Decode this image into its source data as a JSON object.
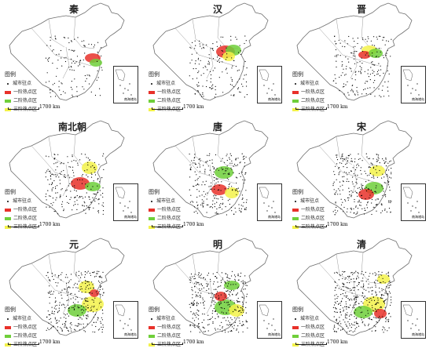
{
  "panels": [
    {
      "title": "秦",
      "legend": {
        "header": "图例",
        "city": "城市驻点",
        "t1": "一阶热点区",
        "t2": "二阶热点区",
        "t3": "三阶热点区"
      },
      "scale": "1700 km",
      "inset": "南海诸岛"
    },
    {
      "title": "汉",
      "legend": {
        "header": "图例",
        "city": "城市驻点",
        "t1": "一阶热点区",
        "t2": "二阶热点区",
        "t3": "三阶热点区"
      },
      "scale": "1700 km",
      "inset": "南海诸岛"
    },
    {
      "title": "晋",
      "legend": {
        "header": "图例",
        "city": "城市驻点",
        "t1": "一阶热点区",
        "t2": "二阶热点区",
        "t3": "三阶热点区"
      },
      "scale": "1700 km",
      "inset": "南海诸岛"
    },
    {
      "title": "南北朝",
      "legend": {
        "header": "图例",
        "city": "城市驻点",
        "t1": "一阶热点区",
        "t2": "二阶热点区",
        "t3": "三阶热点区"
      },
      "scale": "1700 km",
      "inset": "南海诸岛"
    },
    {
      "title": "唐",
      "legend": {
        "header": "图例",
        "city": "城市驻点",
        "t1": "一阶热点区",
        "t2": "二阶热点区",
        "t3": "三阶热点区"
      },
      "scale": "1700 km",
      "inset": "南海诸岛"
    },
    {
      "title": "宋",
      "legend": {
        "header": "图例",
        "city": "城市驻点",
        "t1": "一阶热点区",
        "t2": "二阶热点区",
        "t3": "三阶热点区"
      },
      "scale": "1700 km",
      "inset": "南海诸岛"
    },
    {
      "title": "元",
      "legend": {
        "header": "图例",
        "city": "城市驻点",
        "t1": "一阶热点区",
        "t2": "二阶热点区",
        "t3": "三阶热点区"
      },
      "scale": "1700 km",
      "inset": "南海诸岛"
    },
    {
      "title": "明",
      "legend": {
        "header": "图例",
        "city": "城市驻点",
        "t1": "一阶热点区",
        "t2": "二阶热点区",
        "t3": "三阶热点区"
      },
      "scale": "1700 km",
      "inset": "南海诸岛"
    },
    {
      "title": "清",
      "legend": {
        "header": "图例",
        "city": "城市驻点",
        "t1": "一阶热点区",
        "t2": "二阶热点区",
        "t3": "三阶热点区"
      },
      "scale": "1700 km",
      "inset": "南海诸岛"
    }
  ],
  "colors": {
    "tier1": "#e8312a",
    "tier2": "#6fcf3a",
    "tier3": "#f3f24a",
    "city": "#000000",
    "border": "#7a7a7a"
  }
}
